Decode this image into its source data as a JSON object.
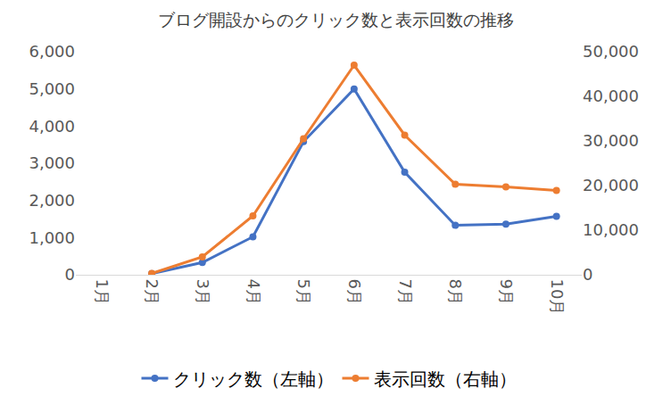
{
  "chart_data": {
    "type": "line",
    "title": "ブログ開設からのクリック数と表示回数の推移",
    "categories": [
      "1月",
      "2月",
      "3月",
      "4月",
      "5月",
      "6月",
      "7月",
      "8月",
      "9月",
      "10月"
    ],
    "series": [
      {
        "name": "クリック数（左軸）",
        "color": "#4472c4",
        "marker": "circle",
        "line_style": "solid",
        "values": [
          null,
          30,
          330,
          1020,
          3580,
          5000,
          2760,
          1330,
          1360,
          1570
        ]
      },
      {
        "name": "表示回数（右軸）",
        "color": "#ed7d31",
        "marker": "circle",
        "line_style": "solid",
        "axis": "y2",
        "values": [
          null,
          300,
          4000,
          13200,
          30500,
          47000,
          31300,
          20300,
          19700,
          18900
        ]
      }
    ],
    "ylim": [
      0,
      6000
    ],
    "yticks": [
      0,
      {
        "value": 1000,
        "label": "1,000"
      },
      {
        "value": 2000,
        "label": "2,000"
      },
      {
        "value": 3000,
        "label": "3,000"
      },
      {
        "value": 4000,
        "label": "4,000"
      },
      {
        "value": 5000,
        "label": "5,000"
      },
      {
        "value": 6000,
        "label": "6,000"
      }
    ],
    "y2lim": [
      0,
      50000
    ],
    "y2ticks": [
      0,
      {
        "value": 10000,
        "label": "10,000"
      },
      {
        "value": 20000,
        "label": "20,000"
      },
      {
        "value": 30000,
        "label": "30,000"
      },
      {
        "value": 40000,
        "label": "40,000"
      },
      {
        "value": 50000,
        "label": "50,000"
      }
    ],
    "grid": false,
    "legend": "bottom"
  }
}
